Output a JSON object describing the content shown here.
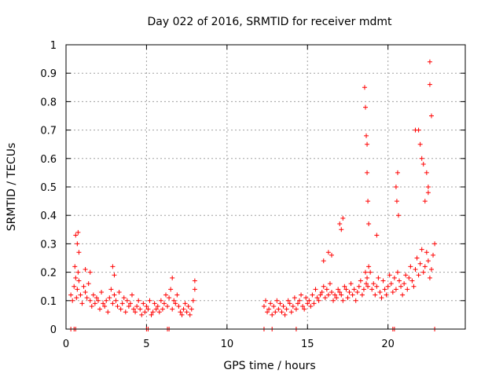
{
  "chart_data": {
    "type": "scatter",
    "title": "Day 022 of 2016, SRMTID for receiver mdmt",
    "xlabel": "GPS time / hours",
    "ylabel": "SRMTID / TECUs",
    "xlim": [
      0,
      24.8
    ],
    "ylim": [
      0,
      1
    ],
    "xticks": [
      0,
      5,
      10,
      15,
      20
    ],
    "yticks": [
      0,
      0.1,
      0.2,
      0.3,
      0.4,
      0.5,
      0.6,
      0.7,
      0.8,
      0.9,
      1
    ],
    "grid": true,
    "marker": "+",
    "marker_color": "#ff0000",
    "series": [
      {
        "name": "SRMTID",
        "x": [
          0.3,
          0.4,
          0.5,
          0.55,
          0.6,
          0.65,
          0.7,
          0.75,
          0.8,
          0.9,
          1.0,
          1.1,
          1.2,
          1.3,
          1.4,
          1.5,
          1.6,
          1.7,
          1.8,
          1.9,
          2.0,
          2.1,
          2.2,
          2.3,
          2.4,
          2.5,
          2.6,
          2.7,
          2.8,
          2.9,
          3.0,
          3.1,
          3.2,
          3.3,
          3.4,
          3.5,
          3.6,
          3.7,
          3.8,
          3.9,
          4.0,
          4.1,
          4.2,
          4.3,
          4.4,
          4.5,
          4.6,
          4.7,
          4.8,
          4.9,
          5.0,
          5.1,
          5.2,
          5.3,
          5.4,
          5.5,
          5.6,
          5.7,
          5.8,
          5.9,
          6.0,
          6.1,
          6.2,
          6.3,
          6.4,
          6.5,
          6.6,
          6.7,
          6.8,
          6.9,
          7.0,
          7.1,
          7.2,
          7.3,
          7.4,
          7.5,
          7.6,
          7.7,
          7.8,
          7.9,
          8.0,
          12.3,
          12.4,
          12.5,
          12.6,
          12.7,
          12.8,
          12.9,
          13.0,
          13.1,
          13.2,
          13.3,
          13.4,
          13.5,
          13.6,
          13.7,
          13.8,
          13.9,
          14.0,
          14.1,
          14.2,
          14.3,
          14.4,
          14.5,
          14.6,
          14.7,
          14.8,
          14.9,
          15.0,
          15.1,
          15.2,
          15.3,
          15.4,
          15.5,
          15.6,
          15.7,
          15.8,
          15.9,
          16.0,
          16.1,
          16.2,
          16.3,
          16.4,
          16.5,
          16.6,
          16.7,
          16.8,
          16.9,
          17.0,
          17.1,
          17.2,
          17.3,
          17.4,
          17.5,
          17.6,
          17.7,
          17.8,
          17.9,
          18.0,
          18.1,
          18.2,
          18.3,
          18.4,
          18.5,
          18.6,
          18.65,
          18.7,
          18.75,
          18.8,
          18.9,
          19.0,
          19.1,
          19.2,
          19.3,
          19.4,
          19.5,
          19.6,
          19.7,
          19.8,
          19.9,
          20.0,
          20.1,
          20.2,
          20.3,
          20.4,
          20.5,
          20.6,
          20.7,
          20.8,
          20.9,
          21.0,
          21.1,
          21.2,
          21.3,
          21.4,
          21.5,
          21.6,
          21.7,
          21.8,
          21.9,
          22.0,
          22.1,
          22.2,
          22.3,
          22.4,
          22.5,
          22.6,
          22.7,
          22.8,
          22.9,
          0.6,
          0.7,
          0.75,
          0.8,
          1.2,
          1.5,
          2.9,
          3.0,
          6.6,
          8.0,
          16.0,
          16.3,
          16.5,
          17.0,
          17.1,
          17.2,
          18.55,
          18.6,
          18.65,
          18.7,
          18.7,
          18.75,
          18.8,
          19.3,
          20.5,
          20.6,
          20.55,
          20.65,
          21.9,
          22.0,
          22.1,
          22.2,
          22.4,
          22.5,
          22.6,
          22.6,
          22.7,
          22.5,
          22.3,
          21.7,
          0.3,
          0.5,
          0.6,
          5.0,
          5.1,
          6.3,
          6.4,
          12.3,
          12.8,
          14.3,
          20.3,
          20.4,
          22.9
        ],
        "y": [
          0.12,
          0.1,
          0.15,
          0.22,
          0.18,
          0.11,
          0.14,
          0.2,
          0.17,
          0.12,
          0.09,
          0.15,
          0.13,
          0.11,
          0.16,
          0.1,
          0.08,
          0.12,
          0.09,
          0.11,
          0.1,
          0.07,
          0.13,
          0.09,
          0.08,
          0.1,
          0.06,
          0.11,
          0.14,
          0.09,
          0.12,
          0.1,
          0.08,
          0.13,
          0.07,
          0.09,
          0.11,
          0.06,
          0.1,
          0.08,
          0.09,
          0.12,
          0.07,
          0.06,
          0.08,
          0.1,
          0.07,
          0.05,
          0.09,
          0.06,
          0.08,
          0.07,
          0.1,
          0.05,
          0.06,
          0.09,
          0.07,
          0.08,
          0.06,
          0.1,
          0.07,
          0.09,
          0.12,
          0.08,
          0.11,
          0.14,
          0.07,
          0.1,
          0.09,
          0.12,
          0.08,
          0.06,
          0.05,
          0.07,
          0.09,
          0.06,
          0.08,
          0.05,
          0.07,
          0.1,
          0.14,
          0.08,
          0.1,
          0.06,
          0.07,
          0.09,
          0.05,
          0.08,
          0.06,
          0.1,
          0.07,
          0.09,
          0.06,
          0.08,
          0.05,
          0.07,
          0.1,
          0.09,
          0.06,
          0.08,
          0.11,
          0.07,
          0.09,
          0.1,
          0.12,
          0.08,
          0.07,
          0.11,
          0.09,
          0.1,
          0.08,
          0.12,
          0.09,
          0.14,
          0.11,
          0.1,
          0.12,
          0.13,
          0.15,
          0.11,
          0.14,
          0.12,
          0.16,
          0.13,
          0.1,
          0.12,
          0.11,
          0.14,
          0.13,
          0.12,
          0.1,
          0.15,
          0.14,
          0.11,
          0.13,
          0.16,
          0.12,
          0.14,
          0.1,
          0.13,
          0.15,
          0.17,
          0.12,
          0.14,
          0.2,
          0.16,
          0.18,
          0.15,
          0.22,
          0.2,
          0.14,
          0.16,
          0.12,
          0.15,
          0.18,
          0.13,
          0.11,
          0.17,
          0.14,
          0.12,
          0.15,
          0.19,
          0.16,
          0.13,
          0.18,
          0.14,
          0.2,
          0.17,
          0.15,
          0.12,
          0.16,
          0.19,
          0.14,
          0.18,
          0.22,
          0.17,
          0.15,
          0.21,
          0.25,
          0.19,
          0.23,
          0.28,
          0.2,
          0.22,
          0.27,
          0.24,
          0.18,
          0.21,
          0.26,
          0.3,
          0.33,
          0.3,
          0.34,
          0.27,
          0.21,
          0.2,
          0.22,
          0.19,
          0.18,
          0.17,
          0.24,
          0.27,
          0.26,
          0.37,
          0.35,
          0.39,
          0.85,
          0.78,
          0.68,
          0.65,
          0.55,
          0.45,
          0.37,
          0.33,
          0.5,
          0.55,
          0.45,
          0.4,
          0.7,
          0.65,
          0.6,
          0.58,
          0.55,
          0.5,
          0.94,
          0.86,
          0.75,
          0.48,
          0.45,
          0.7,
          0.0,
          0.0,
          0.0,
          0.0,
          0.0,
          0.0,
          0.0,
          0.0,
          0.0,
          0.0,
          0.0,
          0.0,
          0.0
        ]
      }
    ]
  }
}
